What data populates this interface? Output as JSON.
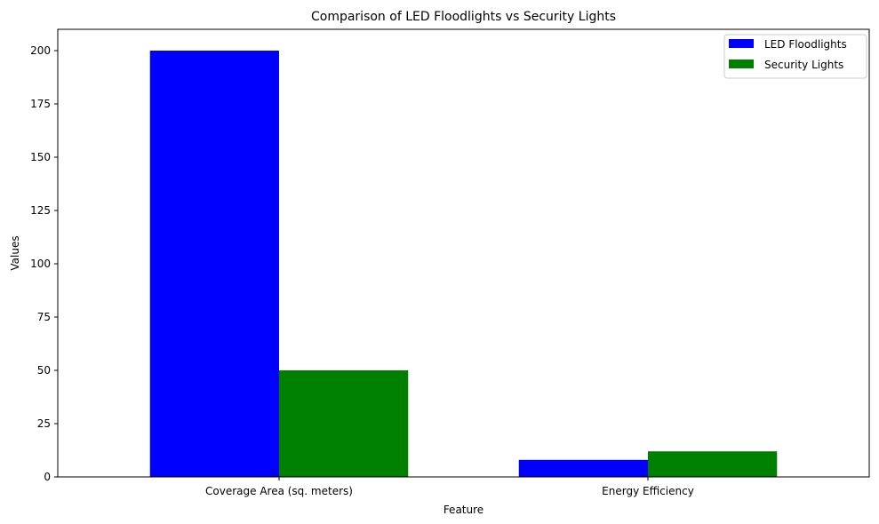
{
  "chart_data": {
    "type": "bar",
    "title": "Comparison of LED Floodlights vs Security Lights",
    "xlabel": "Feature",
    "ylabel": "Values",
    "categories": [
      "Coverage Area (sq. meters)",
      "Energy Efficiency"
    ],
    "series": [
      {
        "name": "LED Floodlights",
        "values": [
          200,
          8
        ],
        "color": "#0000ff"
      },
      {
        "name": "Security Lights",
        "values": [
          50,
          12
        ],
        "color": "#008000"
      }
    ],
    "ylim": [
      0,
      210
    ],
    "yticks": [
      0,
      25,
      50,
      75,
      100,
      125,
      150,
      175,
      200
    ],
    "grid": false,
    "legend_position": "top-right"
  }
}
